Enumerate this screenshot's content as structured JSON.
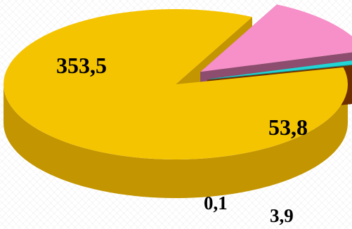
{
  "chart_data": {
    "type": "pie",
    "style": "3d-exploded",
    "title": "",
    "values": [
      353.5,
      53.8,
      3.9,
      0.1
    ],
    "labels": [
      "353,5",
      "53,8",
      "3,9",
      "0,1"
    ],
    "colors": [
      "#F5C400",
      "#F78FC8",
      "#22D6D6",
      "#B04A00"
    ],
    "side_colors": [
      "#C39500",
      "#8C4D6E",
      "#138C8C",
      "#6E2E00"
    ],
    "legend": "none",
    "grid": false
  }
}
